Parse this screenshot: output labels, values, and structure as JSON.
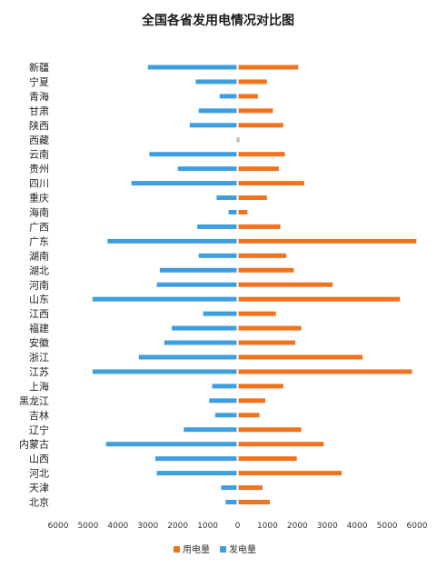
{
  "chart_data": {
    "type": "bar",
    "orientation": "horizontal",
    "title": "全国各省发用电情况对比图",
    "categories": [
      "新疆",
      "宁夏",
      "青海",
      "甘肃",
      "陕西",
      "西藏",
      "云南",
      "贵州",
      "四川",
      "重庆",
      "海南",
      "广西",
      "广东",
      "湖南",
      "湖北",
      "河南",
      "山东",
      "江西",
      "福建",
      "安徽",
      "浙江",
      "江苏",
      "上海",
      "黑龙江",
      "吉林",
      "辽宁",
      "内蒙古",
      "山西",
      "河北",
      "天津",
      "北京"
    ],
    "series": [
      {
        "name": "用电量",
        "color": "#F0731E",
        "direction": "right",
        "values": [
          2000,
          950,
          650,
          1150,
          1500,
          25,
          1550,
          1350,
          2200,
          950,
          300,
          1400,
          5950,
          1600,
          1850,
          3150,
          5400,
          1250,
          2100,
          1900,
          4150,
          5800,
          1500,
          900,
          700,
          2100,
          2850,
          1950,
          3450,
          800,
          1050
        ]
      },
      {
        "name": "发电量",
        "color": "#3D9FE0",
        "direction": "left",
        "values": [
          3000,
          1400,
          600,
          1300,
          1600,
          25,
          2950,
          2000,
          3550,
          700,
          300,
          1350,
          4350,
          1300,
          2600,
          2700,
          4850,
          1150,
          2200,
          2450,
          3300,
          4850,
          850,
          950,
          750,
          1800,
          4400,
          2750,
          2700,
          550,
          400
        ]
      }
    ],
    "xlim": [
      -6000,
      6000
    ],
    "x_ticks": [
      -6000,
      -5000,
      -4000,
      -3000,
      -2000,
      -1000,
      0,
      1000,
      2000,
      3000,
      4000,
      5000,
      6000
    ],
    "x_tick_labels": [
      "6000",
      "5000",
      "4000",
      "3000",
      "2000",
      "1000",
      "0",
      "1000",
      "2000",
      "3000",
      "4000",
      "5000",
      "6000"
    ],
    "legend": {
      "position": "bottom",
      "entries": [
        "用电量",
        "发电量"
      ]
    },
    "grid": false
  }
}
